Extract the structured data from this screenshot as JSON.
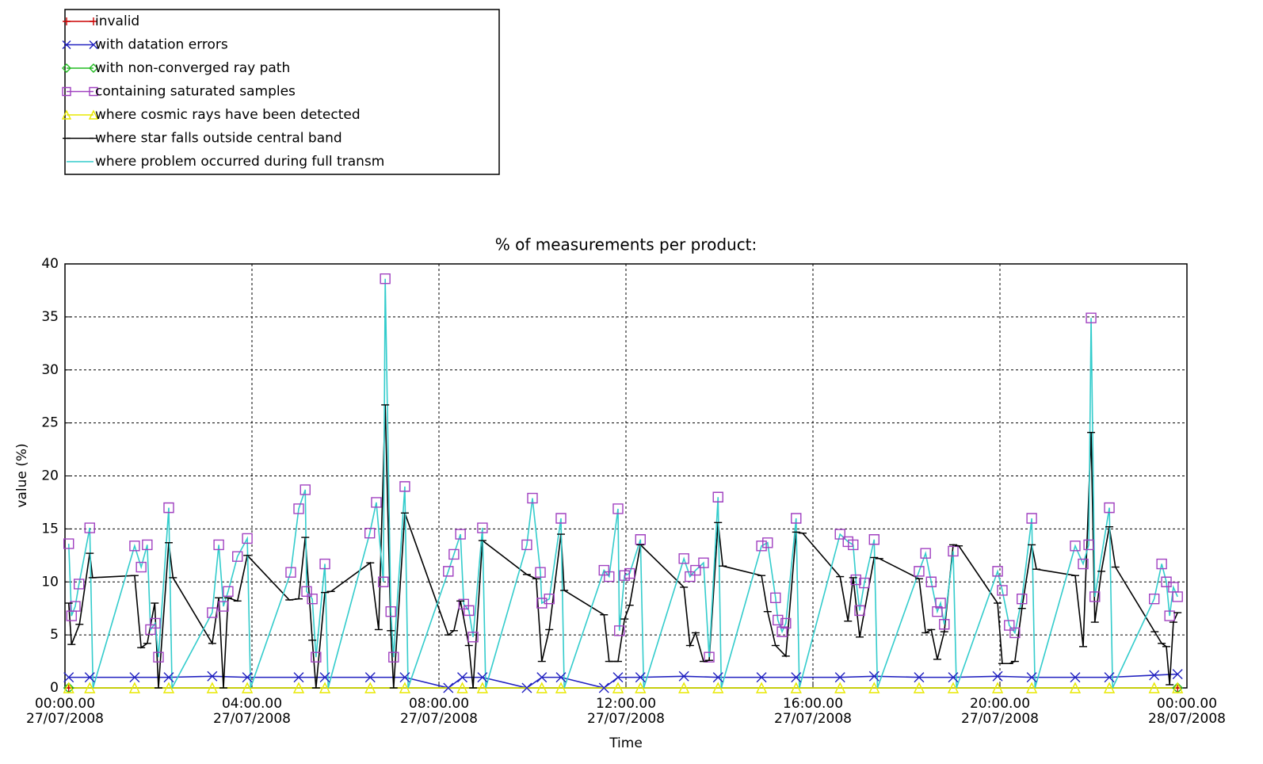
{
  "chart_data": {
    "type": "line",
    "title": "% of measurements per product:",
    "x_label": "Time",
    "y_label": "value (%)",
    "xlim": [
      0,
      24
    ],
    "xticks": [
      {
        "value": 0,
        "label": "00:00.00\n27/07/2008"
      },
      {
        "value": 4,
        "label": "04:00.00\n27/07/2008"
      },
      {
        "value": 8,
        "label": "08:00.00\n27/07/2008"
      },
      {
        "value": 12,
        "label": "12:00.00\n27/07/2008"
      },
      {
        "value": 16,
        "label": "16:00.00\n27/07/2008"
      },
      {
        "value": 20,
        "label": "20:00.00\n27/07/2008"
      },
      {
        "value": 24,
        "label": "00:00.00\n28/07/2008"
      }
    ],
    "ylim": [
      0,
      40
    ],
    "yticks": [
      0,
      5,
      10,
      15,
      20,
      25,
      30,
      35,
      40
    ],
    "grid": true,
    "legend": "top-left",
    "series": [
      {
        "name": "invalid",
        "color": "#cc0000",
        "marker": "plus",
        "line": true,
        "x": [
          0.08,
          23.8
        ],
        "values": [
          0,
          0
        ]
      },
      {
        "name": "with datation errors",
        "color": "#2020c0",
        "marker": "x",
        "line": true,
        "x": [
          0.08,
          0.53,
          1.49,
          2.22,
          3.15,
          3.9,
          5.0,
          5.56,
          6.53,
          7.27,
          8.2,
          8.5,
          8.93,
          9.88,
          10.2,
          10.61,
          11.53,
          11.83,
          12.31,
          13.24,
          13.97,
          14.9,
          15.64,
          16.58,
          17.31,
          18.27,
          19.0,
          19.95,
          20.68,
          21.61,
          22.34,
          23.3,
          23.8
        ],
        "values": [
          1,
          1,
          1,
          1,
          1.1,
          1,
          1,
          1,
          1,
          1,
          0,
          1,
          1,
          0,
          1,
          1,
          0,
          1,
          1,
          1.1,
          1,
          1,
          1,
          1,
          1.1,
          1,
          1,
          1.1,
          1,
          1,
          1,
          1.2,
          1.3
        ]
      },
      {
        "name": "with non-converged ray path",
        "color": "#22bb22",
        "marker": "diamond",
        "line": true,
        "x": [
          0.08,
          23.8
        ],
        "values": [
          0,
          0
        ]
      },
      {
        "name": "containing saturated samples",
        "color": "#a040c0",
        "marker": "square",
        "line": false,
        "x": [
          0.08,
          0.14,
          0.22,
          0.3,
          0.53,
          1.49,
          1.63,
          1.76,
          1.83,
          1.93,
          2.0,
          2.22,
          3.15,
          3.29,
          3.39,
          3.49,
          3.69,
          3.9,
          4.83,
          5.0,
          5.14,
          5.17,
          5.29,
          5.37,
          5.56,
          6.52,
          6.66,
          6.81,
          6.85,
          6.97,
          7.03,
          7.27,
          8.2,
          8.32,
          8.46,
          8.53,
          8.64,
          8.73,
          8.93,
          9.88,
          10.0,
          10.17,
          10.2,
          10.36,
          10.61,
          11.53,
          11.64,
          11.83,
          11.86,
          11.97,
          12.08,
          12.31,
          13.24,
          13.37,
          13.49,
          13.66,
          13.78,
          13.97,
          14.9,
          15.03,
          15.2,
          15.25,
          15.34,
          15.42,
          15.64,
          16.58,
          16.75,
          16.86,
          16.92,
          17.0,
          17.1,
          17.31,
          18.27,
          18.41,
          18.53,
          18.66,
          18.73,
          18.81,
          19.0,
          19.95,
          20.05,
          20.2,
          20.32,
          20.47,
          20.68,
          21.61,
          21.78,
          21.9,
          21.95,
          22.03,
          22.34,
          23.3,
          23.46,
          23.56,
          23.63,
          23.71,
          23.8
        ],
        "values": [
          13.6,
          6.8,
          7.7,
          9.8,
          15.1,
          13.4,
          11.4,
          13.5,
          5.5,
          6.1,
          2.9,
          17.0,
          7.1,
          13.5,
          7.7,
          9.1,
          12.4,
          14.1,
          10.9,
          16.9,
          18.7,
          9.1,
          8.4,
          2.9,
          11.7,
          14.6,
          17.5,
          10.0,
          38.6,
          7.2,
          2.9,
          19.0,
          11.0,
          12.6,
          14.5,
          7.9,
          7.3,
          4.8,
          15.1,
          13.5,
          17.9,
          10.9,
          8.0,
          8.4,
          16.0,
          11.1,
          10.5,
          16.9,
          5.4,
          10.6,
          10.8,
          14.0,
          12.2,
          10.5,
          11.1,
          11.8,
          2.9,
          18.0,
          13.4,
          13.7,
          8.5,
          6.4,
          5.3,
          6.1,
          16.0,
          14.5,
          13.8,
          13.5,
          10.2,
          7.3,
          9.9,
          14.0,
          11.0,
          12.7,
          10.0,
          7.2,
          8.0,
          6.0,
          12.9,
          11.0,
          9.2,
          5.9,
          5.2,
          8.4,
          16.0,
          13.4,
          11.7,
          13.5,
          34.9,
          8.6,
          17.0,
          8.4,
          11.7,
          10.0,
          6.8,
          9.5,
          8.6
        ]
      },
      {
        "name": "where cosmic rays have been detected",
        "color": "#e8e800",
        "marker": "triangle",
        "line": true,
        "x": [
          0.08,
          0.53,
          1.49,
          2.22,
          3.15,
          3.9,
          5.0,
          5.56,
          6.53,
          7.27,
          8.5,
          8.93,
          10.2,
          10.61,
          11.83,
          12.31,
          13.24,
          13.97,
          14.9,
          15.64,
          16.58,
          17.31,
          18.27,
          19.0,
          19.95,
          20.68,
          21.61,
          22.34,
          23.3,
          23.8
        ],
        "values": [
          0,
          0,
          0,
          0,
          0,
          0,
          0,
          0,
          0,
          0,
          0,
          0,
          0,
          0,
          0,
          0,
          0,
          0,
          0,
          0,
          0,
          0,
          0,
          0,
          0,
          0,
          0,
          0,
          0,
          0
        ]
      },
      {
        "name": "where star falls outside central band",
        "color": "#000000",
        "marker": "dash",
        "line": true,
        "x": [
          0.08,
          0.14,
          0.31,
          0.53,
          0.59,
          1.49,
          1.63,
          1.76,
          1.92,
          2.0,
          2.22,
          2.31,
          3.15,
          3.29,
          3.39,
          3.49,
          3.69,
          3.9,
          4.8,
          5.0,
          5.14,
          5.29,
          5.37,
          5.56,
          5.69,
          6.53,
          6.71,
          6.85,
          6.97,
          7.03,
          7.27,
          8.2,
          8.32,
          8.46,
          8.64,
          8.73,
          8.93,
          9.88,
          10.08,
          10.2,
          10.36,
          10.61,
          10.68,
          11.53,
          11.64,
          11.83,
          11.97,
          12.08,
          12.31,
          13.24,
          13.37,
          13.49,
          13.66,
          13.78,
          13.97,
          14.07,
          14.9,
          15.03,
          15.2,
          15.42,
          15.64,
          15.78,
          16.58,
          16.75,
          16.86,
          17.0,
          17.31,
          17.42,
          18.27,
          18.41,
          18.53,
          18.66,
          18.81,
          19.0,
          19.12,
          19.95,
          20.05,
          20.2,
          20.32,
          20.47,
          20.68,
          20.78,
          21.61,
          21.78,
          21.95,
          22.03,
          22.17,
          22.34,
          22.47,
          23.31,
          23.46,
          23.56,
          23.63,
          23.71,
          23.8
        ],
        "values": [
          8,
          4.1,
          6,
          12.7,
          10.4,
          10.6,
          3.8,
          4.2,
          8,
          0,
          13.7,
          10.4,
          4.2,
          8.5,
          0,
          8.5,
          8.2,
          12.5,
          8.3,
          8.4,
          14.2,
          4.5,
          0,
          9,
          9.1,
          11.8,
          5.5,
          26.7,
          5.4,
          0,
          16.5,
          5,
          5.4,
          8.2,
          4,
          0,
          13.9,
          10.7,
          10.3,
          2.5,
          5.5,
          14.5,
          9.2,
          6.9,
          2.5,
          2.5,
          6.5,
          7.8,
          13.5,
          9.5,
          4,
          5.2,
          2.5,
          2.6,
          15.6,
          11.5,
          10.6,
          7.2,
          4,
          3,
          14.7,
          14.6,
          10.5,
          6.3,
          10.4,
          4.8,
          12.3,
          12.2,
          10.3,
          5.2,
          5.5,
          2.7,
          5.3,
          13.5,
          13.4,
          8,
          2.3,
          2.3,
          2.5,
          7.5,
          13.5,
          11.2,
          10.6,
          3.9,
          24.1,
          6.2,
          11,
          15.2,
          11.4,
          5.3,
          4.2,
          3.9,
          0.3,
          6.2,
          7.1
        ]
      },
      {
        "name": "where problem occurred during full transm",
        "color": "#33cccc",
        "marker": "none",
        "line": true,
        "x": [
          0.08,
          0.14,
          0.22,
          0.3,
          0.53,
          0.6,
          1.49,
          1.63,
          1.76,
          1.83,
          1.93,
          2.0,
          2.22,
          2.29,
          3.15,
          3.29,
          3.39,
          3.49,
          3.69,
          3.9,
          3.97,
          4.83,
          5.0,
          5.14,
          5.17,
          5.29,
          5.37,
          5.56,
          5.63,
          6.52,
          6.66,
          6.81,
          6.85,
          6.97,
          7.03,
          7.27,
          7.34,
          8.2,
          8.32,
          8.46,
          8.53,
          8.64,
          8.73,
          8.93,
          9.0,
          9.88,
          10.0,
          10.17,
          10.2,
          10.36,
          10.61,
          10.68,
          11.53,
          11.64,
          11.83,
          11.86,
          11.97,
          12.08,
          12.31,
          12.38,
          13.24,
          13.37,
          13.49,
          13.66,
          13.78,
          13.97,
          14.04,
          14.9,
          15.03,
          15.2,
          15.25,
          15.34,
          15.42,
          15.64,
          15.71,
          16.58,
          16.75,
          16.86,
          16.92,
          17.0,
          17.1,
          17.31,
          17.38,
          18.27,
          18.41,
          18.53,
          18.66,
          18.73,
          18.81,
          19.0,
          19.07,
          19.95,
          20.05,
          20.2,
          20.32,
          20.47,
          20.68,
          20.75,
          21.61,
          21.78,
          21.9,
          21.95,
          22.03,
          22.34,
          22.41,
          23.3,
          23.46,
          23.56,
          23.63,
          23.71,
          23.8
        ],
        "values": [
          13.6,
          6.8,
          7.7,
          9.8,
          15.1,
          0,
          13.4,
          11.4,
          13.5,
          5.5,
          6.1,
          2.9,
          17.0,
          0,
          7.1,
          13.5,
          7.7,
          9.1,
          12.4,
          14.1,
          0,
          10.9,
          16.9,
          18.7,
          9.1,
          8.4,
          2.9,
          11.7,
          0,
          14.6,
          17.5,
          10.0,
          38.6,
          7.2,
          2.9,
          19.0,
          0,
          11.0,
          12.6,
          14.5,
          7.9,
          7.3,
          4.8,
          15.1,
          0,
          13.5,
          17.9,
          10.9,
          8.0,
          8.4,
          16.0,
          0,
          11.1,
          10.5,
          16.9,
          5.4,
          10.6,
          10.8,
          14.0,
          0,
          12.2,
          10.5,
          11.1,
          11.8,
          2.9,
          18.0,
          0,
          13.4,
          13.7,
          8.5,
          6.4,
          5.3,
          6.1,
          16.0,
          0,
          14.5,
          13.8,
          13.5,
          10.2,
          7.3,
          9.9,
          14.0,
          0,
          11.0,
          12.7,
          10.0,
          7.2,
          8.0,
          6.0,
          12.9,
          0,
          11.0,
          9.2,
          5.9,
          5.2,
          8.4,
          16.0,
          0,
          13.4,
          11.7,
          13.5,
          34.9,
          8.6,
          17.0,
          0,
          8.4,
          11.7,
          10.0,
          6.8,
          9.5,
          8.6
        ]
      }
    ]
  }
}
